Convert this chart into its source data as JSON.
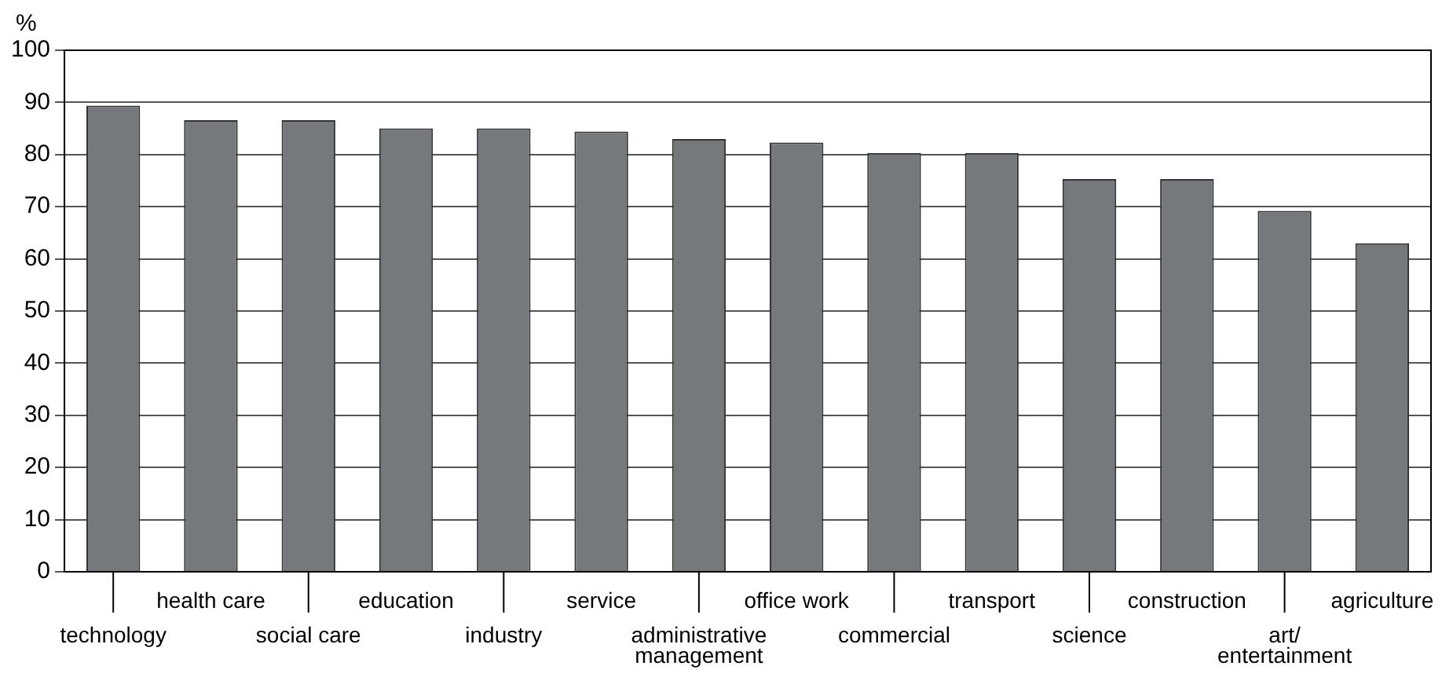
{
  "chart_data": {
    "type": "bar",
    "ylabel": "%",
    "categories": [
      "technology",
      "health care",
      "social care",
      "education",
      "industry",
      "service",
      "administrative\nmanagement",
      "office work",
      "commercial",
      "transport",
      "science",
      "construction",
      "art/\nentertainment",
      "agriculture"
    ],
    "values": [
      89.4,
      86.6,
      86.6,
      85,
      85,
      84.4,
      83,
      82.3,
      80.3,
      80.3,
      75.3,
      75.3,
      69.2,
      63
    ],
    "color": "#77787b",
    "ylim": [
      0,
      100
    ],
    "yticks": [
      0,
      10,
      20,
      30,
      40,
      50,
      60,
      70,
      80,
      90,
      100
    ],
    "grid": "y"
  }
}
